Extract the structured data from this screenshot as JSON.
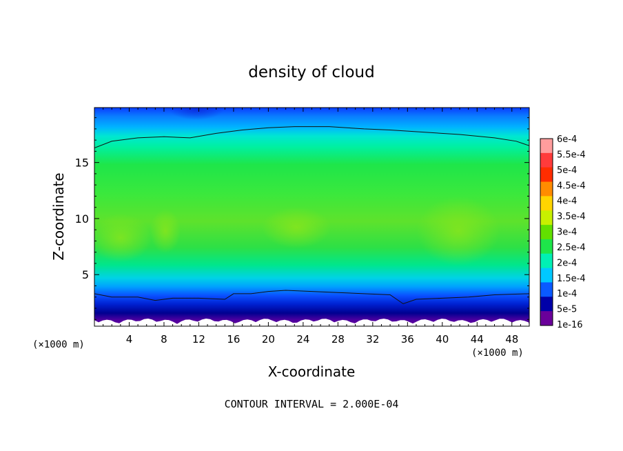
{
  "chart_data": {
    "type": "heatmap",
    "title": "density of cloud",
    "xlabel": "X-coordinate",
    "ylabel": "Z-coordinate",
    "x_unit_left": "(×1000 m)",
    "x_unit_right": "(×1000 m)",
    "footer": "CONTOUR INTERVAL = 2.000E-04",
    "xlim": [
      0,
      50
    ],
    "ylim": [
      0.4,
      19.9
    ],
    "x_ticks": [
      4,
      8,
      12,
      16,
      20,
      24,
      28,
      32,
      36,
      40,
      44,
      48
    ],
    "x_tick_labels": [
      "4",
      "8",
      "12",
      "16",
      "20",
      "24",
      "28",
      "32",
      "36",
      "40",
      "44",
      "48"
    ],
    "y_ticks": [
      5,
      10,
      15
    ],
    "y_tick_labels": [
      "5",
      "10",
      "15"
    ],
    "colorbar": {
      "labels": [
        "6e-4",
        "5.5e-4",
        "5e-4",
        "4.5e-4",
        "4e-4",
        "3.5e-4",
        "3e-4",
        "2.5e-4",
        "2e-4",
        "1.5e-4",
        "1e-4",
        "5e-5",
        "1e-16"
      ],
      "values": [
        0.0006,
        0.00055,
        0.0005,
        0.00045,
        0.0004,
        0.00035,
        0.0003,
        0.00025,
        0.0002,
        0.00015,
        0.0001,
        5e-05,
        1e-16
      ],
      "colors": [
        "#ff9d9d",
        "#ff3b3b",
        "#ff2d00",
        "#ff8c00",
        "#ffd500",
        "#c8f000",
        "#62e000",
        "#1ee64a",
        "#00f0b4",
        "#00c8ff",
        "#0a5aff",
        "#0000a8",
        "#6a009a"
      ]
    },
    "contour_lines": [
      {
        "level": 0.0002,
        "points": [
          [
            0,
            16.3
          ],
          [
            2,
            16.9
          ],
          [
            5,
            17.2
          ],
          [
            8,
            17.3
          ],
          [
            11,
            17.2
          ],
          [
            14,
            17.6
          ],
          [
            17,
            17.9
          ],
          [
            20,
            18.1
          ],
          [
            23,
            18.2
          ],
          [
            27,
            18.2
          ],
          [
            31,
            18.0
          ],
          [
            34,
            17.9
          ],
          [
            38,
            17.7
          ],
          [
            42,
            17.5
          ],
          [
            46,
            17.2
          ],
          [
            48.5,
            16.9
          ],
          [
            50,
            16.5
          ]
        ]
      },
      {
        "level": 0.0002,
        "points": [
          [
            0,
            3.3
          ],
          [
            2,
            3.0
          ],
          [
            5,
            3.0
          ],
          [
            7,
            2.7
          ],
          [
            9,
            2.9
          ],
          [
            12,
            2.9
          ],
          [
            15,
            2.8
          ],
          [
            16,
            3.3
          ],
          [
            18,
            3.3
          ],
          [
            20,
            3.5
          ],
          [
            22,
            3.6
          ],
          [
            25,
            3.5
          ],
          [
            28,
            3.4
          ],
          [
            31,
            3.3
          ],
          [
            34,
            3.2
          ],
          [
            35.5,
            2.4
          ],
          [
            37,
            2.8
          ],
          [
            40,
            2.9
          ],
          [
            43,
            3.0
          ],
          [
            46,
            3.2
          ],
          [
            50,
            3.3
          ]
        ]
      }
    ]
  }
}
